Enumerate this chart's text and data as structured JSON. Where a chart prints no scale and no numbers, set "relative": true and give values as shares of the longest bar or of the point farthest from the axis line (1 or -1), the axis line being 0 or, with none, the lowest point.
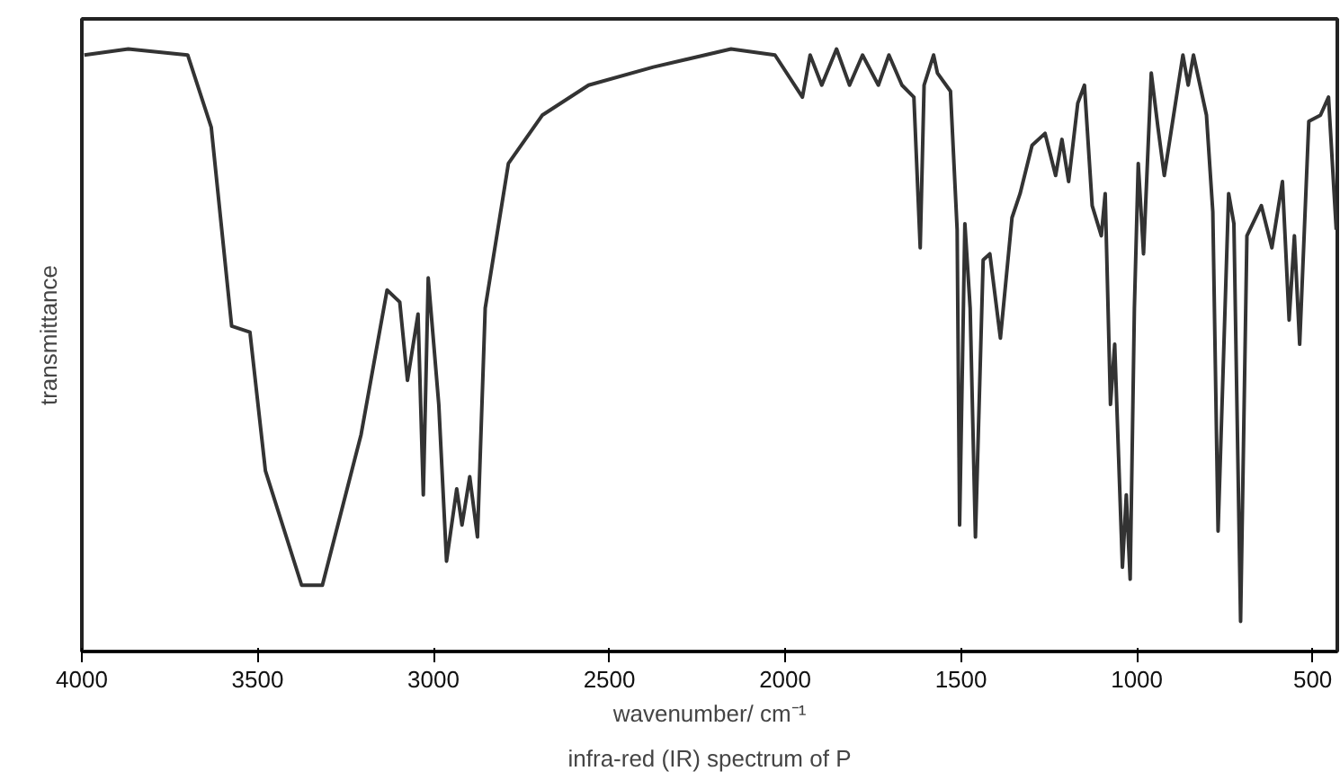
{
  "chart_data": {
    "type": "line",
    "title": "infra-red (IR) spectrum of P",
    "xlabel": "wavenumber/ cm⁻¹",
    "ylabel": "transmittance",
    "relative": true,
    "grid": false,
    "tick_labels": "x",
    "marker": "none",
    "line_style": "solid",
    "xlim": [
      4000,
      430
    ],
    "xticks": [
      4000,
      3500,
      3000,
      2500,
      2000,
      1500,
      1000,
      500
    ],
    "x": [
      3993,
      3868,
      3699,
      3632,
      3574,
      3522,
      3478,
      3375,
      3316,
      3206,
      3132,
      3096,
      3074,
      3044,
      3029,
      3015,
      2985,
      2963,
      2934,
      2919,
      2897,
      2875,
      2853,
      2787,
      2691,
      2559,
      2375,
      2154,
      2029,
      1951,
      1929,
      1896,
      1854,
      1817,
      1780,
      1735,
      1705,
      1668,
      1634,
      1616,
      1605,
      1578,
      1567,
      1530,
      1511,
      1504,
      1489,
      1474,
      1459,
      1437,
      1418,
      1388,
      1355,
      1332,
      1298,
      1261,
      1231,
      1213,
      1194,
      1168,
      1149,
      1127,
      1101,
      1090,
      1075,
      1063,
      1041,
      1030,
      1019,
      1007,
      996,
      981,
      959,
      940,
      922,
      869,
      854,
      839,
      802,
      784,
      769,
      739,
      724,
      705,
      687,
      646,
      616,
      586,
      567,
      552,
      537,
      511,
      478,
      455,
      433
    ],
    "series": [
      {
        "color": "#333333",
        "values": [
          0.99,
          1.0,
          0.99,
          0.87,
          0.54,
          0.53,
          0.3,
          0.11,
          0.11,
          0.36,
          0.6,
          0.58,
          0.45,
          0.56,
          0.26,
          0.62,
          0.41,
          0.15,
          0.27,
          0.21,
          0.29,
          0.19,
          0.57,
          0.81,
          0.89,
          0.94,
          0.97,
          1.0,
          0.99,
          0.92,
          0.99,
          0.94,
          1.0,
          0.94,
          0.99,
          0.94,
          0.99,
          0.94,
          0.92,
          0.67,
          0.94,
          0.99,
          0.96,
          0.93,
          0.7,
          0.21,
          0.71,
          0.57,
          0.19,
          0.65,
          0.66,
          0.52,
          0.72,
          0.76,
          0.84,
          0.86,
          0.79,
          0.85,
          0.78,
          0.91,
          0.94,
          0.74,
          0.69,
          0.76,
          0.41,
          0.51,
          0.14,
          0.26,
          0.12,
          0.57,
          0.81,
          0.66,
          0.96,
          0.87,
          0.79,
          0.99,
          0.94,
          0.99,
          0.89,
          0.73,
          0.2,
          0.76,
          0.71,
          0.05,
          0.69,
          0.74,
          0.67,
          0.78,
          0.55,
          0.69,
          0.51,
          0.88,
          0.89,
          0.92,
          0.7
        ]
      }
    ]
  }
}
